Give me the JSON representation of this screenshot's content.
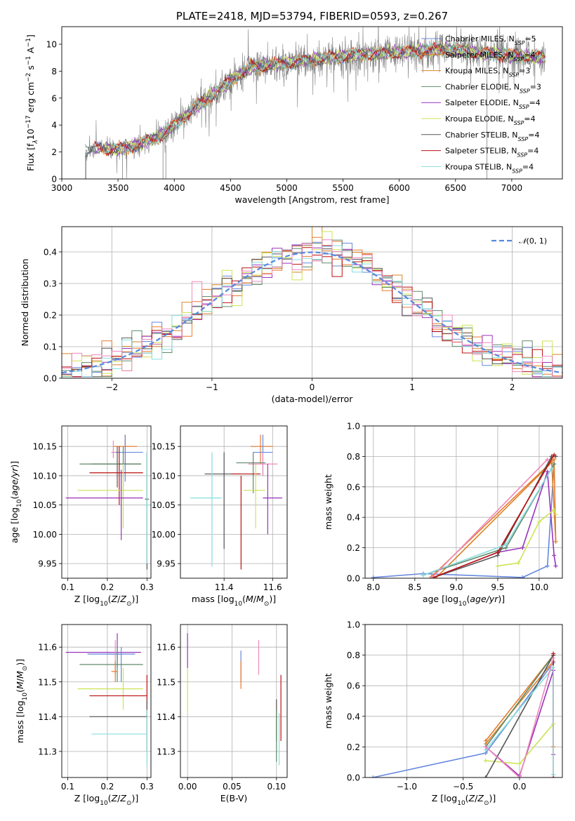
{
  "chart_data": [
    {
      "id": "spectrum",
      "type": "line",
      "title": "PLATE=2418, MJD=53794, FIBERID=0593, z=0.267",
      "xlabel": "wavelength [Angstrom, rest frame]",
      "ylabel": "Flux [f_λ 10^-17 erg cm^-2 s^-1 A^-1]",
      "xlim": [
        3000,
        7450
      ],
      "ylim": [
        0,
        11.3
      ],
      "xticks": [
        3000,
        3500,
        4000,
        4500,
        5000,
        5500,
        6000,
        6500,
        7000
      ],
      "yticks": [
        0,
        2,
        4,
        6,
        8,
        10
      ],
      "grid": false,
      "legend_position": "top-right",
      "data_start": 3210,
      "data_end": 7300,
      "continuum": {
        "x": [
          3210,
          3300,
          3500,
          3700,
          3900,
          4100,
          4300,
          4500,
          4700,
          5000,
          5300,
          5600,
          6000,
          6400,
          6800,
          7300
        ],
        "y": [
          2.0,
          2.3,
          2.2,
          2.6,
          3.3,
          4.7,
          6.0,
          7.3,
          8.3,
          8.6,
          8.9,
          9.2,
          9.4,
          9.6,
          9.3,
          9.0
        ]
      },
      "series": [
        {
          "name": "Chabrier MILES, N_SSP=5",
          "color": "#6688dd"
        },
        {
          "name": "Salpeter MILES, N_SSP=4",
          "color": "#e87a2d"
        },
        {
          "name": "Kroupa MILES, N_SSP=3",
          "color": "#d8842a"
        },
        {
          "name": "Chabrier ELODIE, N_SSP=3",
          "color": "#5f8a6a"
        },
        {
          "name": "Salpeter ELODIE, N_SSP=4",
          "color": "#9933bb"
        },
        {
          "name": "Kroupa ELODIE, N_SSP=4",
          "color": "#cce355"
        },
        {
          "name": "Chabrier STELIB, N_SSP=4",
          "color": "#555555"
        },
        {
          "name": "Salpeter STELIB, N_SSP=4",
          "color": "#bb1111"
        },
        {
          "name": "Kroupa STELIB, N_SSP=4",
          "color": "#88dddd"
        }
      ]
    },
    {
      "id": "residuals",
      "type": "line",
      "xlabel": "(data-model)/error",
      "ylabel": "Normed distribution",
      "xlim": [
        -2.5,
        2.5
      ],
      "ylim": [
        0,
        0.48
      ],
      "xticks": [
        -2,
        -1,
        0,
        1,
        2
      ],
      "yticks": [
        0.0,
        0.1,
        0.2,
        0.3,
        0.4
      ],
      "grid": true,
      "legend": "N(0,1)",
      "legend_position": "top-right",
      "normal_curve": {
        "mu": 0,
        "sigma": 1,
        "color": "#5588dd",
        "style": "dashed"
      },
      "bin_edges_start": -2.5,
      "bin_width": 0.1,
      "hist_colors": [
        "#6688dd",
        "#e87a2d",
        "#d8842a",
        "#5f8a6a",
        "#9933bb",
        "#cce355",
        "#555555",
        "#bb1111",
        "#88dddd",
        "#ee88bb"
      ]
    },
    {
      "id": "age_vs_Z",
      "type": "scatter",
      "xlabel": "Z [log10(Z/Z⊙)]",
      "ylabel": "age  [log10(age/yr)]",
      "xlim": [
        0.085,
        0.31
      ],
      "ylim": [
        9.925,
        10.185
      ],
      "xticks": [
        0.1,
        0.2,
        0.3
      ],
      "yticks": [
        9.95,
        10.0,
        10.05,
        10.1,
        10.15
      ],
      "grid": true,
      "points": [
        {
          "x": 0.245,
          "y": 10.15,
          "xerr": [
            0.215,
            0.275
          ],
          "yerr": [
            10.12,
            10.17
          ],
          "color": "#e87a2d"
        },
        {
          "x": 0.245,
          "y": 10.14,
          "xerr": [
            0.21,
            0.29
          ],
          "yerr": [
            10.09,
            10.17
          ],
          "color": "#6688dd"
        },
        {
          "x": 0.225,
          "y": 10.12,
          "xerr": [
            0.16,
            0.285
          ],
          "yerr": [
            10.08,
            10.15
          ],
          "color": "#555555"
        },
        {
          "x": 0.24,
          "y": 10.12,
          "xerr": [
            0.13,
            0.285
          ],
          "yerr": [
            10.06,
            10.15
          ],
          "color": "#5f8a6a"
        },
        {
          "x": 0.23,
          "y": 10.105,
          "xerr": [
            0.155,
            0.29
          ],
          "yerr": [
            10.05,
            10.15
          ],
          "color": "#bb1111"
        },
        {
          "x": 0.24,
          "y": 10.075,
          "xerr": [
            0.125,
            0.29
          ],
          "yerr": [
            10.01,
            10.12
          ],
          "color": "#cce355"
        },
        {
          "x": 0.235,
          "y": 10.062,
          "xerr": [
            0.095,
            0.29
          ],
          "yerr": [
            9.99,
            10.11
          ],
          "color": "#9933bb"
        },
        {
          "x": 0.3,
          "y": 10.06,
          "xerr": [
            0.295,
            0.305
          ],
          "yerr": [
            9.94,
            10.14
          ],
          "color": "#555555"
        },
        {
          "x": 0.3,
          "y": 10.05,
          "xerr": [
            0.295,
            0.305
          ],
          "yerr": [
            9.95,
            10.14
          ],
          "color": "#88dddd"
        },
        {
          "x": 0.215,
          "y": 10.14,
          "xerr": [
            0.21,
            0.22
          ],
          "yerr": [
            10.13,
            10.16
          ],
          "color": "#ee88bb"
        }
      ]
    },
    {
      "id": "age_vs_mass",
      "type": "scatter",
      "xlabel": "mass [log10(M/M⊙)]",
      "ylabel": "",
      "xlim": [
        11.22,
        11.66
      ],
      "ylim": [
        9.925,
        10.185
      ],
      "xticks": [
        11.4,
        11.6
      ],
      "yticks": [
        9.95,
        10.0,
        10.05,
        10.1,
        10.15
      ],
      "grid": true,
      "points": [
        {
          "x": 11.55,
          "y": 10.15,
          "xerr": [
            11.51,
            11.6
          ],
          "yerr": [
            10.12,
            10.17
          ],
          "color": "#e87a2d"
        },
        {
          "x": 11.56,
          "y": 10.14,
          "xerr": [
            11.52,
            11.6
          ],
          "yerr": [
            10.1,
            10.17
          ],
          "color": "#6688dd"
        },
        {
          "x": 11.56,
          "y": 10.12,
          "xerr": [
            11.5,
            11.62
          ],
          "yerr": [
            10.1,
            10.14
          ],
          "color": "#ee88bb"
        },
        {
          "x": 11.52,
          "y": 10.122,
          "xerr": [
            11.45,
            11.57
          ],
          "yerr": [
            10.07,
            10.14
          ],
          "color": "#5f8a6a"
        },
        {
          "x": 11.4,
          "y": 10.103,
          "xerr": [
            11.32,
            11.47
          ],
          "yerr": [
            9.975,
            10.14
          ],
          "color": "#555555"
        },
        {
          "x": 11.47,
          "y": 10.103,
          "xerr": [
            11.43,
            11.55
          ],
          "yerr": [
            9.94,
            10.1
          ],
          "color": "#bb1111"
        },
        {
          "x": 11.53,
          "y": 10.075,
          "xerr": [
            11.48,
            11.57
          ],
          "yerr": [
            10.01,
            10.12
          ],
          "color": "#cce355"
        },
        {
          "x": 11.58,
          "y": 10.062,
          "xerr": [
            11.56,
            11.64
          ],
          "yerr": [
            10.0,
            10.12
          ],
          "color": "#9933bb"
        },
        {
          "x": 11.35,
          "y": 10.062,
          "xerr": [
            11.26,
            11.39
          ],
          "yerr": [
            9.945,
            10.14
          ],
          "color": "#88dddd"
        }
      ]
    },
    {
      "id": "mass_weight_vs_age",
      "type": "line",
      "xlabel": "age  [log10(age/yr)]",
      "ylabel": "mass weight",
      "xlim": [
        7.9,
        10.28
      ],
      "ylim": [
        0,
        1.0
      ],
      "xticks": [
        8.0,
        8.5,
        9.0,
        9.5,
        10.0
      ],
      "yticks": [
        0.0,
        0.2,
        0.4,
        0.6,
        0.8,
        1.0
      ],
      "grid": true,
      "series": [
        {
          "color": "#6688dd",
          "x": [
            8.0,
            8.6,
            9.8,
            10.1,
            10.18
          ],
          "y": [
            0.005,
            0.03,
            0.005,
            0.08,
            0.75
          ]
        },
        {
          "color": "#e87a2d",
          "x": [
            8.7,
            10.18,
            10.2
          ],
          "y": [
            0.01,
            0.78,
            0.24
          ]
        },
        {
          "color": "#d8842a",
          "x": [
            8.75,
            10.15,
            10.2
          ],
          "y": [
            0.0,
            0.76,
            0.24
          ]
        },
        {
          "color": "#5f8a6a",
          "x": [
            8.6,
            9.6,
            10.18
          ],
          "y": [
            0.02,
            0.2,
            0.75
          ]
        },
        {
          "color": "#9933bb",
          "x": [
            8.7,
            9.5,
            9.8,
            10.1,
            10.18,
            10.2
          ],
          "y": [
            0.0,
            0.17,
            0.2,
            0.7,
            0.15,
            0.08
          ]
        },
        {
          "color": "#cce355",
          "x": [
            9.5,
            9.75,
            10.0,
            10.18,
            10.2
          ],
          "y": [
            0.08,
            0.1,
            0.37,
            0.45,
            0.42
          ]
        },
        {
          "color": "#555555",
          "x": [
            8.7,
            9.5,
            10.15,
            10.2
          ],
          "y": [
            0.0,
            0.15,
            0.8,
            0.8
          ]
        },
        {
          "color": "#bb1111",
          "x": [
            8.7,
            9.5,
            10.18
          ],
          "y": [
            0.0,
            0.17,
            0.81
          ]
        },
        {
          "color": "#88dddd",
          "x": [
            8.6,
            9.6,
            10.15
          ],
          "y": [
            0.02,
            0.22,
            0.72
          ]
        },
        {
          "color": "#ee88bb",
          "x": [
            8.7,
            10.1
          ],
          "y": [
            0.0,
            0.78
          ]
        }
      ]
    },
    {
      "id": "mass_vs_Z",
      "type": "scatter",
      "xlabel": "Z [log10(Z/Z⊙)]",
      "ylabel": "mass [log10(M/M⊙)]",
      "xlim": [
        0.085,
        0.31
      ],
      "ylim": [
        11.225,
        11.665
      ],
      "xticks": [
        0.1,
        0.2,
        0.3
      ],
      "yticks": [
        11.3,
        11.4,
        11.5,
        11.6
      ],
      "grid": true,
      "points": [
        {
          "x": 0.225,
          "y": 11.585,
          "xerr": [
            0.095,
            0.285
          ],
          "yerr": [
            11.54,
            11.64
          ],
          "color": "#9933bb"
        },
        {
          "x": 0.22,
          "y": 11.58,
          "xerr": [
            0.2,
            0.235
          ],
          "yerr": [
            11.52,
            11.62
          ],
          "color": "#ee88bb"
        },
        {
          "x": 0.235,
          "y": 11.58,
          "xerr": [
            0.15,
            0.27
          ],
          "yerr": [
            11.5,
            11.6
          ],
          "color": "#6688dd"
        },
        {
          "x": 0.225,
          "y": 11.55,
          "xerr": [
            0.13,
            0.29
          ],
          "yerr": [
            11.5,
            11.6
          ],
          "color": "#5f8a6a"
        },
        {
          "x": 0.22,
          "y": 11.53,
          "xerr": [
            0.21,
            0.225
          ],
          "yerr": [
            11.5,
            11.56
          ],
          "color": "#e87a2d"
        },
        {
          "x": 0.24,
          "y": 11.48,
          "xerr": [
            0.125,
            0.29
          ],
          "yerr": [
            11.42,
            11.54
          ],
          "color": "#cce355"
        },
        {
          "x": 0.3,
          "y": 11.46,
          "xerr": [
            0.155,
            0.3
          ],
          "yerr": [
            11.4,
            11.52
          ],
          "color": "#bb1111"
        },
        {
          "x": 0.3,
          "y": 11.4,
          "xerr": [
            0.155,
            0.3
          ],
          "yerr": [
            11.3,
            11.45
          ],
          "color": "#555555"
        },
        {
          "x": 0.3,
          "y": 11.35,
          "xerr": [
            0.16,
            0.3
          ],
          "yerr": [
            11.26,
            11.42
          ],
          "color": "#88dddd"
        }
      ]
    },
    {
      "id": "mass_vs_EBV",
      "type": "scatter",
      "xlabel": "E(B-V)",
      "ylabel": "",
      "xlim": [
        -0.008,
        0.112
      ],
      "ylim": [
        11.225,
        11.665
      ],
      "xticks": [
        0.0,
        0.05,
        0.1
      ],
      "yticks": [
        11.3,
        11.4,
        11.5,
        11.6
      ],
      "grid": true,
      "points": [
        {
          "x": 0.0,
          "y": 11.585,
          "yerr": [
            11.54,
            11.64
          ],
          "color": "#9933bb"
        },
        {
          "x": 0.0,
          "y": 11.48,
          "yerr": [
            11.41,
            11.54
          ],
          "color": "#cce355"
        },
        {
          "x": 0.06,
          "y": 11.55,
          "yerr": [
            11.5,
            11.59
          ],
          "color": "#6688dd"
        },
        {
          "x": 0.06,
          "y": 11.53,
          "yerr": [
            11.48,
            11.56
          ],
          "color": "#e87a2d"
        },
        {
          "x": 0.08,
          "y": 11.57,
          "yerr": [
            11.52,
            11.62
          ],
          "color": "#ee88bb"
        },
        {
          "x": 0.1,
          "y": 11.4,
          "yerr": [
            11.33,
            11.45
          ],
          "color": "#555555"
        },
        {
          "x": 0.105,
          "y": 11.44,
          "yerr": [
            11.33,
            11.52
          ],
          "color": "#bb1111"
        },
        {
          "x": 0.103,
          "y": 11.35,
          "yerr": [
            11.26,
            11.41
          ],
          "color": "#88dddd"
        },
        {
          "x": 0.1,
          "y": 11.36,
          "yerr": [
            11.27,
            11.42
          ],
          "color": "#5f8a6a"
        }
      ]
    },
    {
      "id": "mass_weight_vs_Z",
      "type": "line",
      "xlabel": "Z [log10(Z/Z⊙)]",
      "ylabel": "mass weight",
      "xlim": [
        -1.37,
        0.38
      ],
      "ylim": [
        0,
        1.0
      ],
      "xticks": [
        -1.0,
        -0.5,
        0.0
      ],
      "yticks": [
        0.0,
        0.2,
        0.4,
        0.6,
        0.8,
        1.0
      ],
      "grid": true,
      "series": [
        {
          "color": "#6688dd",
          "x": [
            -1.3,
            -0.3,
            0.3,
            0.3
          ],
          "y": [
            0.0,
            0.16,
            0.75,
            0.2
          ]
        },
        {
          "color": "#e87a2d",
          "x": [
            -0.3,
            0.3,
            0.3
          ],
          "y": [
            0.24,
            0.8,
            0.2
          ]
        },
        {
          "color": "#d8842a",
          "x": [
            -0.3,
            0.3
          ],
          "y": [
            0.22,
            0.76
          ]
        },
        {
          "color": "#5f8a6a",
          "x": [
            -0.3,
            0.3,
            0.3
          ],
          "y": [
            0.2,
            0.8,
            0.02
          ]
        },
        {
          "color": "#9933bb",
          "x": [
            -0.3,
            0.0,
            0.3,
            0.3
          ],
          "y": [
            0.2,
            0.01,
            0.7,
            0.15
          ]
        },
        {
          "color": "#cce355",
          "x": [
            -0.3,
            0.0,
            0.3
          ],
          "y": [
            0.11,
            0.09,
            0.35
          ]
        },
        {
          "color": "#555555",
          "x": [
            -0.3,
            0.3
          ],
          "y": [
            0.0,
            0.8
          ]
        },
        {
          "color": "#bb1111",
          "x": [
            0.3,
            0.3
          ],
          "y": [
            0.0,
            0.81
          ]
        },
        {
          "color": "#88dddd",
          "x": [
            -0.3,
            0.3,
            0.3
          ],
          "y": [
            0.18,
            0.72,
            0.02
          ]
        },
        {
          "color": "#ee88bb",
          "x": [
            -0.3,
            0.0,
            0.3
          ],
          "y": [
            0.2,
            0.0,
            0.78
          ]
        }
      ]
    }
  ]
}
